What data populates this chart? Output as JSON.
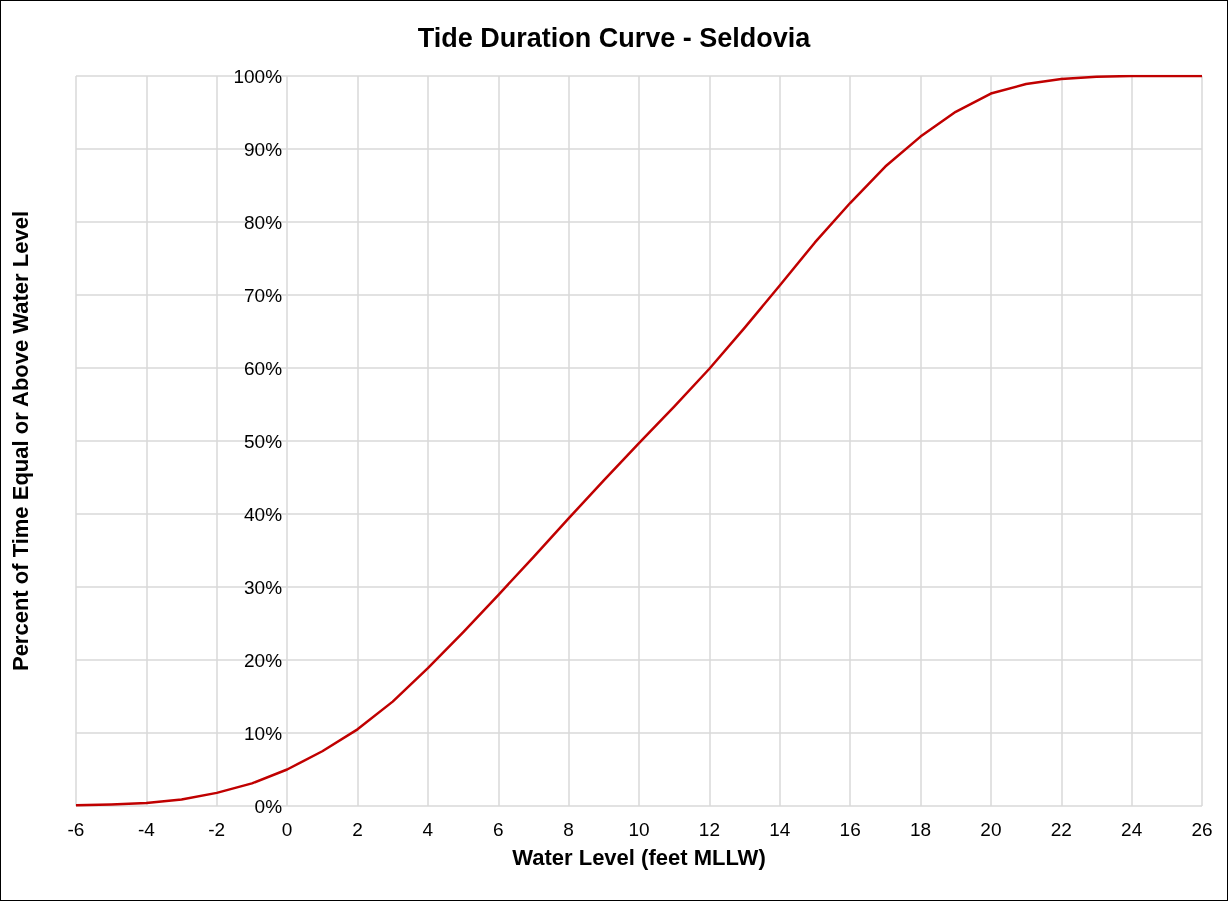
{
  "chart_data": {
    "type": "line",
    "title": "Tide Duration Curve - Seldovia",
    "xlabel": "Water Level (feet MLLW)",
    "ylabel": "Percent of Time Equal or Above Water Level",
    "x": [
      -6,
      -5,
      -4,
      -3,
      -2,
      -1,
      0,
      1,
      2,
      3,
      4,
      5,
      6,
      7,
      8,
      9,
      10,
      11,
      12,
      13,
      14,
      15,
      16,
      17,
      18,
      19,
      20,
      21,
      22,
      23,
      24,
      25,
      26
    ],
    "series": [
      {
        "color": "#c00000",
        "values": [
          0.1,
          0.2,
          0.4,
          0.9,
          1.8,
          3.1,
          5.0,
          7.5,
          10.5,
          14.3,
          18.9,
          23.8,
          28.9,
          34.1,
          39.4,
          44.6,
          49.7,
          54.7,
          59.9,
          65.5,
          71.3,
          77.2,
          82.6,
          87.6,
          91.7,
          95.1,
          97.6,
          98.9,
          99.6,
          99.9,
          100,
          100,
          100
        ]
      }
    ],
    "xlim": [
      -6,
      26
    ],
    "xticks": [
      -6,
      -4,
      -2,
      0,
      2,
      4,
      6,
      8,
      10,
      12,
      14,
      16,
      18,
      20,
      22,
      24,
      26
    ],
    "ylim": [
      0,
      100
    ],
    "yticks": [
      {
        "value": 0,
        "label": "0%"
      },
      {
        "value": 10,
        "label": "10%"
      },
      {
        "value": 20,
        "label": "20%"
      },
      {
        "value": 30,
        "label": "30%"
      },
      {
        "value": 40,
        "label": "40%"
      },
      {
        "value": 50,
        "label": "50%"
      },
      {
        "value": 60,
        "label": "60%"
      },
      {
        "value": 70,
        "label": "70%"
      },
      {
        "value": 80,
        "label": "80%"
      },
      {
        "value": 90,
        "label": "90%"
      },
      {
        "value": 100,
        "label": "100%"
      }
    ],
    "grid": true,
    "marker": "none",
    "line_style": "solid"
  }
}
